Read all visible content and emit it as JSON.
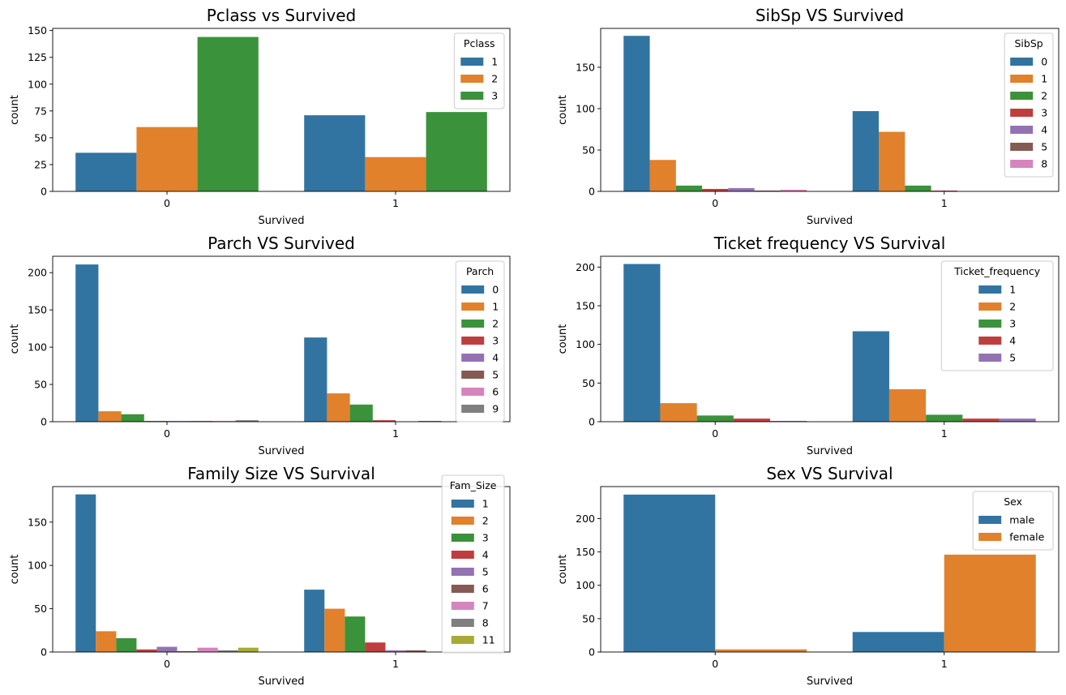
{
  "colors": {
    "palette": [
      "#1f77b4",
      "#ff7f0e",
      "#2ca02c",
      "#d62728",
      "#9467bd",
      "#8c564b",
      "#e377c2",
      "#7f7f7f",
      "#bcbd22"
    ],
    "seaborn_palette": [
      "#3274a1",
      "#e1812c",
      "#3a923a",
      "#c03d3e",
      "#9372b2",
      "#845b53",
      "#d684bd",
      "#7f7f7f",
      "#a9aa35"
    ],
    "axis": "#000000",
    "background": "#ffffff"
  },
  "chart_data": [
    {
      "type": "bar",
      "title": "Pclass vs Survived",
      "xlabel": "Survived",
      "ylabel": "count",
      "categories": [
        "0",
        "1"
      ],
      "ylim": [
        0,
        152
      ],
      "yticks": [
        0,
        25,
        50,
        75,
        100,
        125,
        150
      ],
      "legend_title": "Pclass",
      "legend_loc": "upper right",
      "series": [
        {
          "name": "1",
          "values": [
            36,
            71
          ]
        },
        {
          "name": "2",
          "values": [
            60,
            32
          ]
        },
        {
          "name": "3",
          "values": [
            144,
            74
          ]
        }
      ]
    },
    {
      "type": "bar",
      "title": "SibSp VS Survived",
      "xlabel": "Survived",
      "ylabel": "count",
      "categories": [
        "0",
        "1"
      ],
      "ylim": [
        0,
        197
      ],
      "yticks": [
        0,
        50,
        100,
        150
      ],
      "legend_title": "SibSp",
      "legend_loc": "upper right",
      "series": [
        {
          "name": "0",
          "values": [
            188,
            97
          ]
        },
        {
          "name": "1",
          "values": [
            38,
            72
          ]
        },
        {
          "name": "2",
          "values": [
            7,
            7
          ]
        },
        {
          "name": "3",
          "values": [
            3,
            1
          ]
        },
        {
          "name": "4",
          "values": [
            4,
            0
          ]
        },
        {
          "name": "5",
          "values": [
            1,
            0
          ]
        },
        {
          "name": "8",
          "values": [
            2,
            0
          ]
        }
      ]
    },
    {
      "type": "bar",
      "title": "Parch VS Survived",
      "xlabel": "Survived",
      "ylabel": "count",
      "categories": [
        "0",
        "1"
      ],
      "ylim": [
        0,
        222
      ],
      "yticks": [
        0,
        50,
        100,
        150,
        200
      ],
      "legend_title": "Parch",
      "legend_loc": "upper right",
      "series": [
        {
          "name": "0",
          "values": [
            211,
            113
          ]
        },
        {
          "name": "1",
          "values": [
            14,
            38
          ]
        },
        {
          "name": "2",
          "values": [
            10,
            23
          ]
        },
        {
          "name": "3",
          "values": [
            1,
            2
          ]
        },
        {
          "name": "4",
          "values": [
            1,
            0
          ]
        },
        {
          "name": "5",
          "values": [
            1,
            1
          ]
        },
        {
          "name": "6",
          "values": [
            1,
            0
          ]
        },
        {
          "name": "9",
          "values": [
            2,
            0
          ]
        }
      ]
    },
    {
      "type": "bar",
      "title": "Ticket frequency VS Survival",
      "xlabel": "Survived",
      "ylabel": "count",
      "categories": [
        "0",
        "1"
      ],
      "ylim": [
        0,
        214
      ],
      "yticks": [
        0,
        50,
        100,
        150,
        200
      ],
      "legend_title": "Ticket_frequency",
      "legend_loc": "upper right",
      "series": [
        {
          "name": "1",
          "values": [
            204,
            117
          ]
        },
        {
          "name": "2",
          "values": [
            24,
            42
          ]
        },
        {
          "name": "3",
          "values": [
            8,
            9
          ]
        },
        {
          "name": "4",
          "values": [
            4,
            4
          ]
        },
        {
          "name": "5",
          "values": [
            1,
            4
          ]
        }
      ]
    },
    {
      "type": "bar",
      "title": "Family Size VS Survival",
      "xlabel": "Survived",
      "ylabel": "count",
      "categories": [
        "0",
        "1"
      ],
      "ylim": [
        0,
        191
      ],
      "yticks": [
        0,
        50,
        100,
        150
      ],
      "legend_title": "Fam_Size",
      "legend_loc": "upper right",
      "series": [
        {
          "name": "1",
          "values": [
            182,
            72
          ]
        },
        {
          "name": "2",
          "values": [
            24,
            50
          ]
        },
        {
          "name": "3",
          "values": [
            16,
            41
          ]
        },
        {
          "name": "4",
          "values": [
            3,
            11
          ]
        },
        {
          "name": "5",
          "values": [
            6,
            2
          ]
        },
        {
          "name": "6",
          "values": [
            1,
            2
          ]
        },
        {
          "name": "7",
          "values": [
            5,
            0
          ]
        },
        {
          "name": "8",
          "values": [
            2,
            0
          ]
        },
        {
          "name": "11",
          "values": [
            5,
            0
          ]
        }
      ]
    },
    {
      "type": "bar",
      "title": "Sex VS Survival",
      "xlabel": "Survived",
      "ylabel": "count",
      "categories": [
        "0",
        "1"
      ],
      "ylim": [
        0,
        248
      ],
      "yticks": [
        0,
        50,
        100,
        150,
        200
      ],
      "legend_title": "Sex",
      "legend_loc": "upper right",
      "series": [
        {
          "name": "male",
          "values": [
            236,
            30
          ]
        },
        {
          "name": "female",
          "values": [
            4,
            146
          ]
        }
      ]
    }
  ]
}
